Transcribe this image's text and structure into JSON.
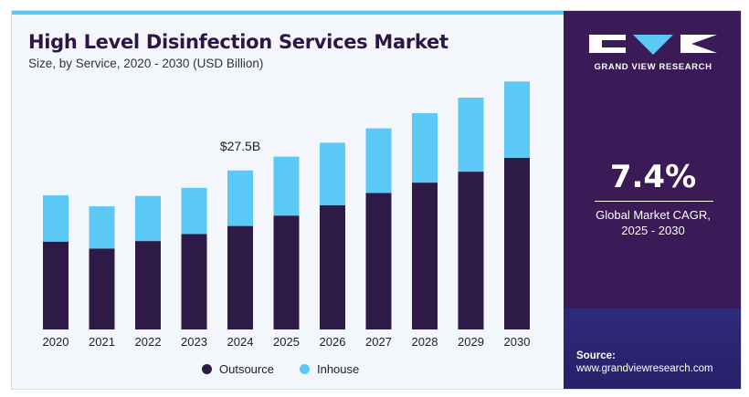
{
  "header": {
    "title": "High Level Disinfection Services Market",
    "subtitle": "Size, by Service, 2020 - 2030 (USD Billion)"
  },
  "colors": {
    "outsource": "#2e1a47",
    "inhouse": "#5bc8f5",
    "panel": "#3a1a57",
    "accent_strip": "#5bc8f5"
  },
  "chart_data": {
    "type": "bar",
    "stacked": true,
    "categories": [
      "2020",
      "2021",
      "2022",
      "2023",
      "2024",
      "2025",
      "2026",
      "2027",
      "2028",
      "2029",
      "2030"
    ],
    "series": [
      {
        "name": "Outsource",
        "values": [
          15.2,
          14.0,
          15.3,
          16.5,
          17.9,
          19.7,
          21.5,
          23.6,
          25.4,
          27.3,
          29.7
        ]
      },
      {
        "name": "Inhouse",
        "values": [
          8.0,
          7.3,
          7.8,
          8.0,
          9.6,
          10.2,
          10.8,
          11.2,
          12.0,
          12.8,
          13.2
        ]
      }
    ],
    "annotations": [
      {
        "category": "2024",
        "text": "$27.5B"
      }
    ],
    "ylim": [
      0,
      45
    ],
    "legend_position": "bottom-center",
    "grid": false,
    "xlabel": "",
    "ylabel": ""
  },
  "legend": {
    "items": [
      {
        "label": "Outsource",
        "color": "#2e1a47"
      },
      {
        "label": "Inhouse",
        "color": "#5bc8f5"
      }
    ]
  },
  "panel": {
    "brand": "GRAND VIEW RESEARCH",
    "cagr_value": "7.4%",
    "cagr_label_line1": "Global Market CAGR,",
    "cagr_label_line2": "2025 - 2030",
    "source_label": "Source:",
    "source_url": "www.grandviewresearch.com"
  }
}
